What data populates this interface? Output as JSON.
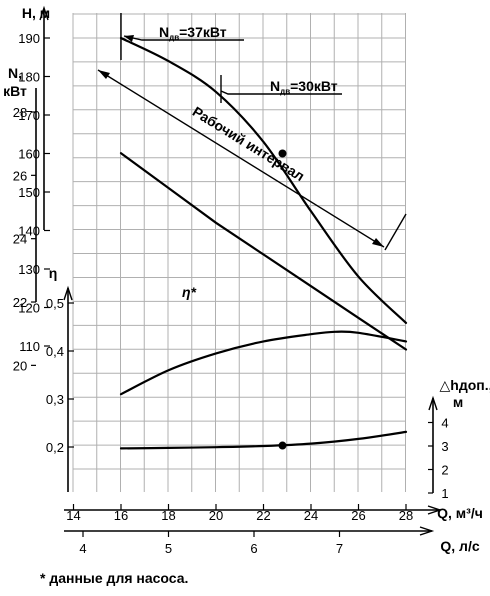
{
  "chart_data": {
    "type": "line",
    "title": "",
    "grid": true,
    "x_axes": [
      {
        "label": "Q, м³/ч",
        "range": [
          14,
          28
        ],
        "ticks": [
          14,
          16,
          18,
          20,
          22,
          24,
          26,
          28
        ]
      },
      {
        "label": "Q, л/с",
        "ticks": [
          4,
          5,
          6,
          7
        ]
      }
    ],
    "y_axes": [
      {
        "id": "H",
        "label": "H, м",
        "range": [
          100,
          195
        ],
        "ticks": [
          110,
          120,
          130,
          140,
          150,
          160,
          170,
          180,
          190
        ]
      },
      {
        "id": "N",
        "label": "N, кВт",
        "range": [
          20,
          29
        ],
        "ticks": [
          20,
          22,
          24,
          26,
          28
        ]
      },
      {
        "id": "eta",
        "label": "η",
        "range": [
          0.15,
          0.55
        ],
        "ticks": [
          "0,2",
          "0,3",
          "0,4",
          "0,5"
        ]
      },
      {
        "id": "npsh",
        "label": "△hдоп., м",
        "range": [
          1,
          4.5
        ],
        "ticks": [
          1,
          2,
          3,
          4
        ]
      }
    ],
    "series": [
      {
        "id": "head",
        "axis": "H",
        "x": [
          16,
          18,
          20,
          22,
          24,
          26,
          28
        ],
        "y": [
          190,
          184,
          176,
          163,
          145,
          128,
          116
        ]
      },
      {
        "id": "power",
        "axis": "N",
        "x": [
          16,
          18,
          20,
          22,
          24,
          26,
          28
        ],
        "y": [
          26.7,
          25.6,
          24.5,
          23.5,
          22.5,
          21.5,
          20.5
        ]
      },
      {
        "id": "efficiency",
        "axis": "eta",
        "x": [
          16,
          18,
          20,
          22,
          24,
          25,
          26,
          28
        ],
        "y": [
          0.31,
          0.36,
          0.395,
          0.42,
          0.435,
          0.44,
          0.438,
          0.42
        ]
      },
      {
        "id": "npsh",
        "axis": "npsh",
        "x": [
          16,
          18,
          20,
          22,
          24,
          26,
          28
        ],
        "y": [
          2.9,
          2.92,
          2.95,
          3.0,
          3.1,
          3.3,
          3.6
        ]
      }
    ],
    "markers": [
      {
        "series": "head",
        "x": 22.8,
        "y": 160
      },
      {
        "series": "npsh",
        "x": 22.8,
        "y": 3.02
      }
    ],
    "annotations": {
      "n37": "N",
      "n37_sub": "дв",
      "n37_val": "=37кВт",
      "n30": "N",
      "n30_sub": "дв",
      "n30_val": "=30кВт",
      "interval": "Рабочий интервал",
      "eta_star": "η*"
    },
    "footnote": "* данные для насоса."
  }
}
